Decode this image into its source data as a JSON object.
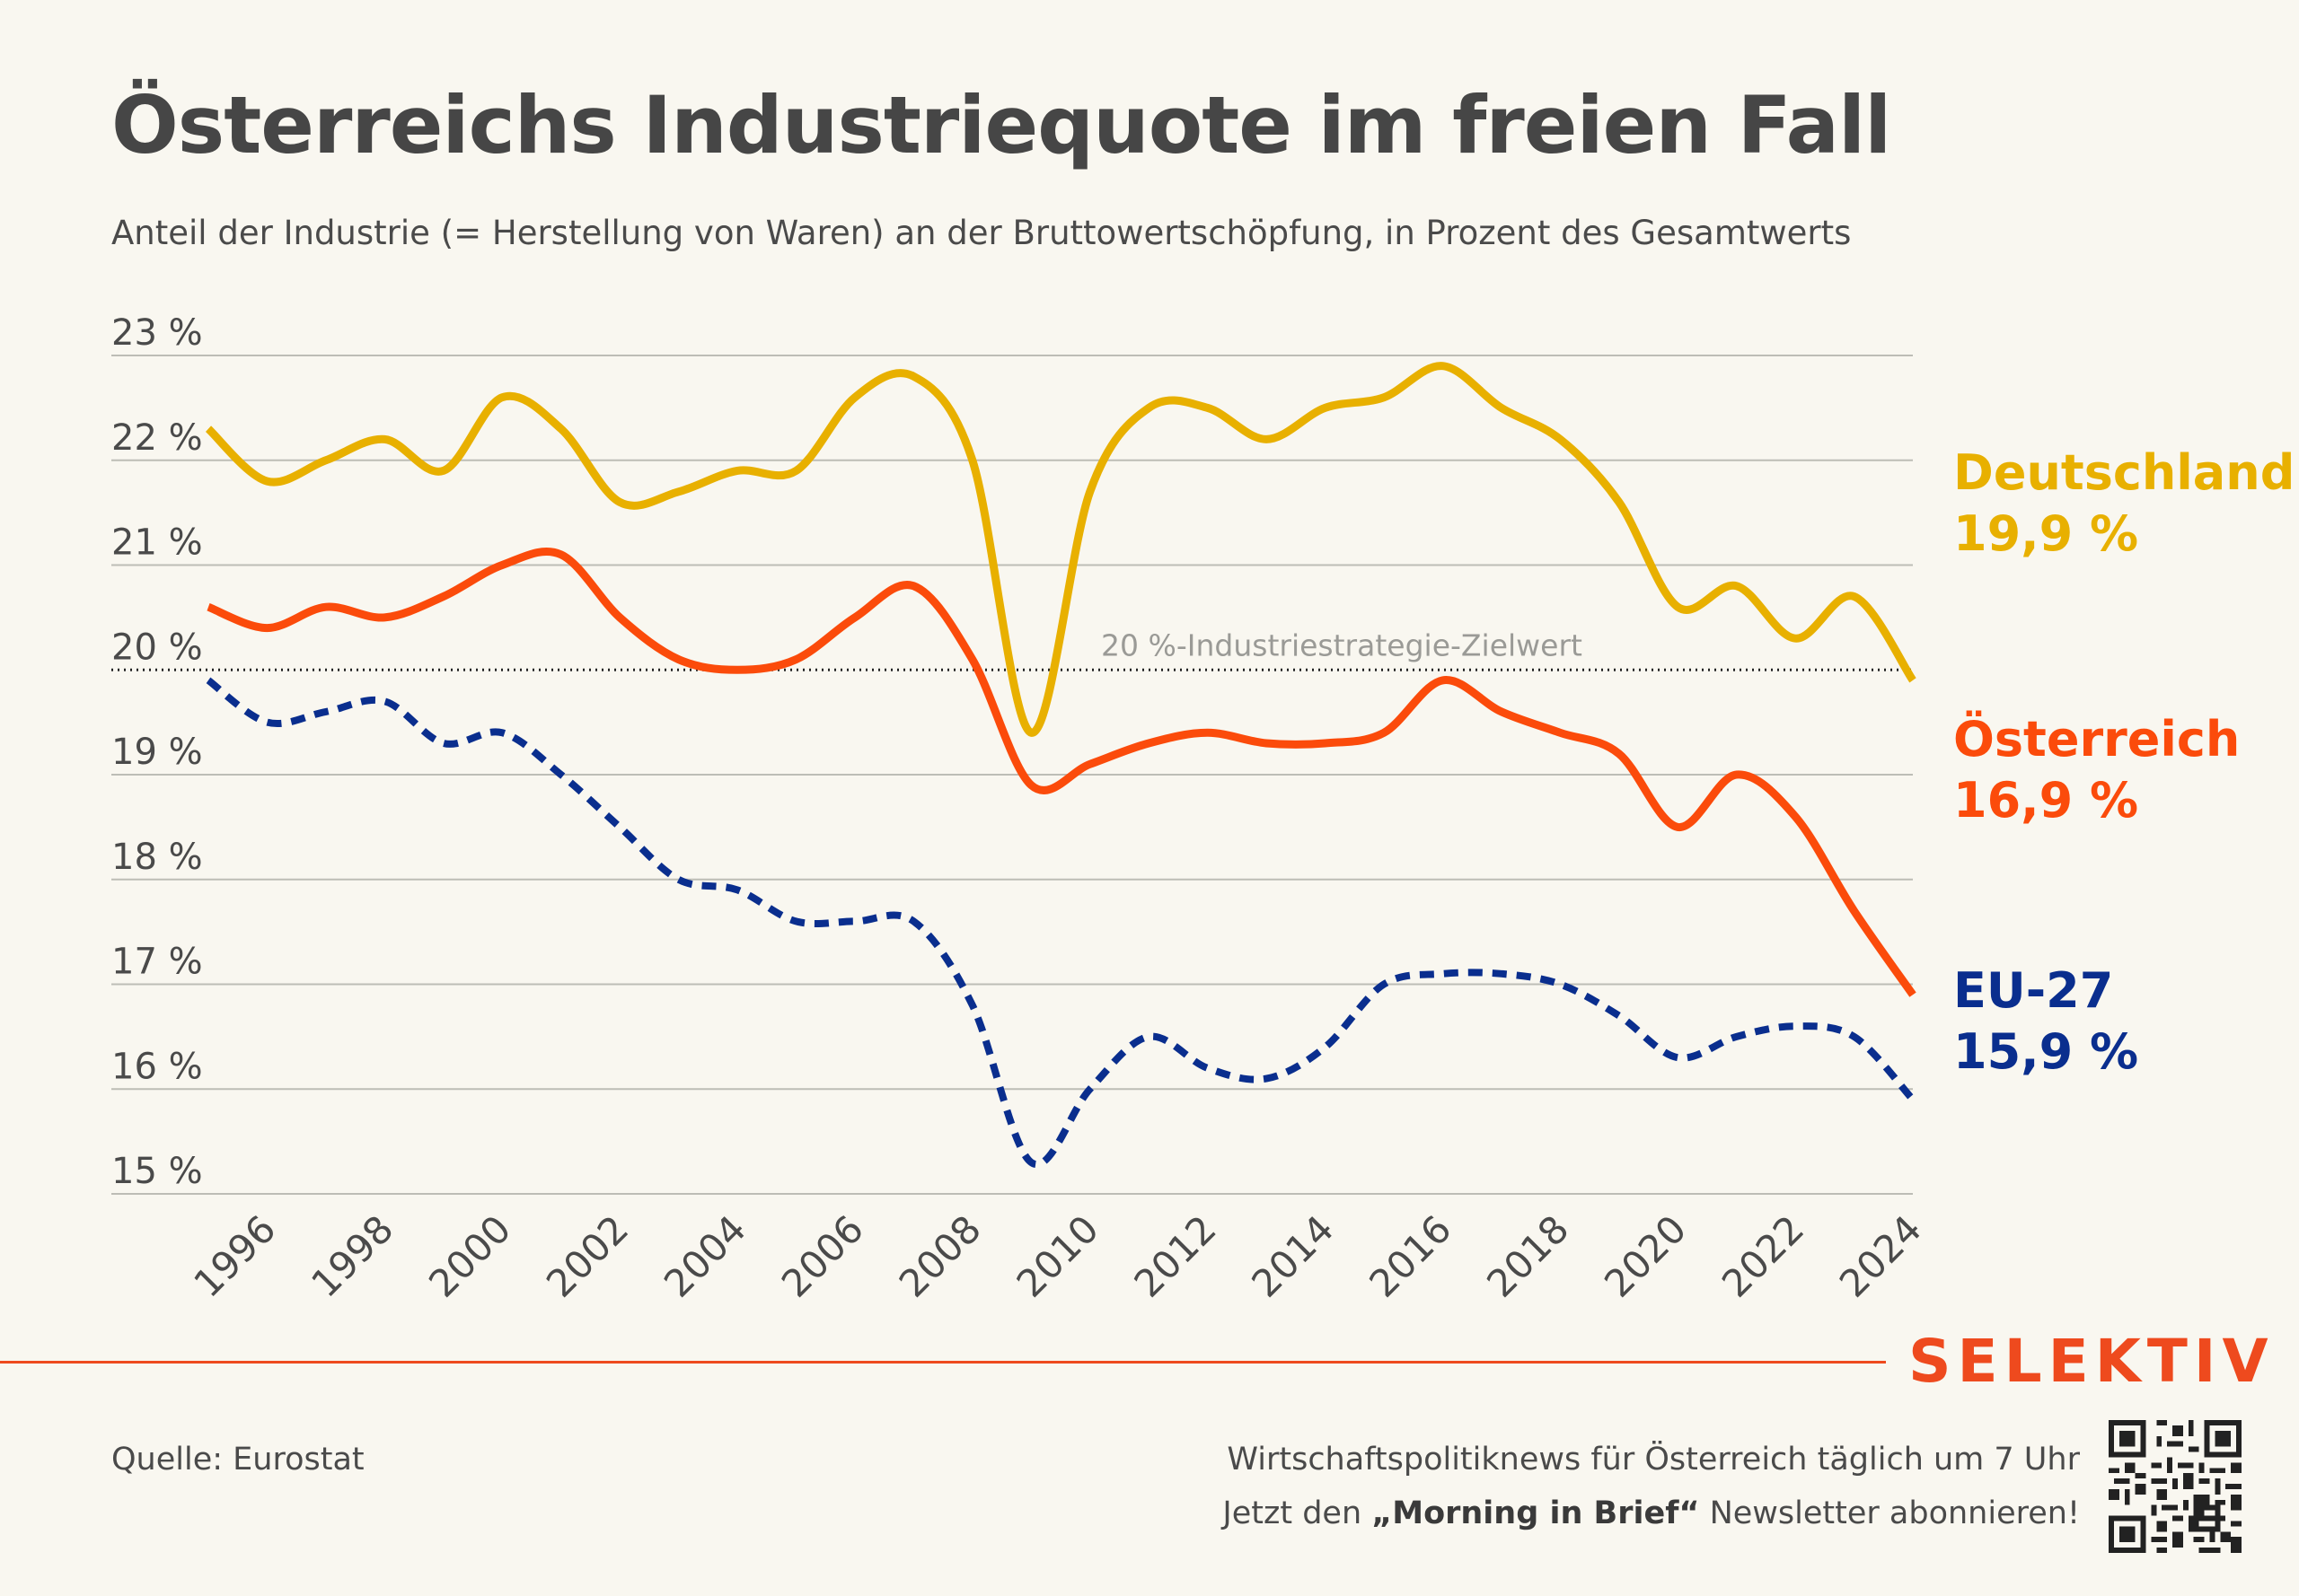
{
  "title": "Österreichs Industriequote im freien Fall",
  "subtitle": "Anteil der Industrie (= Herstellung von Waren) an der Bruttowertschöpfung, in Prozent des Gesamtwerts",
  "footer": {
    "source": "Quelle: Eurostat",
    "brand": "SELEKTIV",
    "promo_line1": "Wirtschaftspolitiknews für Österreich täglich um 7 Uhr",
    "promo_line2_prefix": "Jetzt den ",
    "promo_line2_highlight": "„Morning in Brief“",
    "promo_line2_suffix": " Newsletter abonnieren!",
    "qr_icon": "qr-code-icon"
  },
  "chart_data": {
    "type": "line",
    "title": "Österreichs Industriequote im freien Fall",
    "xlabel": "",
    "ylabel": "",
    "xlim": [
      1995,
      2024
    ],
    "ylim": [
      15,
      23
    ],
    "y_ticks": [
      15,
      16,
      17,
      18,
      19,
      20,
      21,
      22,
      23
    ],
    "y_tick_labels": [
      "15 %",
      "16 %",
      "17 %",
      "18 %",
      "19 %",
      "20 %",
      "21 %",
      "22 %",
      "23 %"
    ],
    "x_ticks": [
      1996,
      1998,
      2000,
      2002,
      2004,
      2006,
      2008,
      2010,
      2012,
      2014,
      2016,
      2018,
      2020,
      2022,
      2024
    ],
    "x_tick_labels": [
      "1996",
      "1998",
      "2000",
      "2002",
      "2004",
      "2006",
      "2008",
      "2010",
      "2012",
      "2014",
      "2016",
      "2018",
      "2020",
      "2022",
      "2024"
    ],
    "grid": true,
    "legend": "right, inline at line ends",
    "reference_line": {
      "value": 20,
      "label": "20 %-Industriestrategie-Zielwert",
      "style": "dotted"
    },
    "x": [
      1995,
      1996,
      1997,
      1998,
      1999,
      2000,
      2001,
      2002,
      2003,
      2004,
      2005,
      2006,
      2007,
      2008,
      2009,
      2010,
      2011,
      2012,
      2013,
      2014,
      2015,
      2016,
      2017,
      2018,
      2019,
      2020,
      2021,
      2022,
      2023,
      2024
    ],
    "series": [
      {
        "name": "Deutschland",
        "end_label": "19,9 %",
        "color": "#e8b000",
        "style": "solid",
        "values": [
          22.3,
          21.8,
          22.0,
          22.2,
          21.9,
          22.6,
          22.3,
          21.6,
          21.7,
          21.9,
          21.9,
          22.6,
          22.8,
          22.0,
          19.4,
          21.7,
          22.5,
          22.5,
          22.2,
          22.5,
          22.6,
          22.9,
          22.5,
          22.2,
          21.6,
          20.6,
          20.8,
          20.3,
          20.7,
          19.9
        ]
      },
      {
        "name": "Österreich",
        "end_label": "16,9 %",
        "color": "#fb4b0b",
        "style": "solid",
        "values": [
          20.6,
          20.4,
          20.6,
          20.5,
          20.7,
          21.0,
          21.1,
          20.5,
          20.1,
          20.0,
          20.1,
          20.5,
          20.8,
          20.1,
          18.9,
          19.1,
          19.3,
          19.4,
          19.3,
          19.3,
          19.4,
          19.9,
          19.6,
          19.4,
          19.2,
          18.5,
          19.0,
          18.6,
          17.7,
          16.9
        ]
      },
      {
        "name": "EU-27",
        "end_label": "15,9 %",
        "color": "#0a2e8e",
        "style": "dashed",
        "values": [
          19.9,
          19.5,
          19.6,
          19.7,
          19.3,
          19.4,
          19.0,
          18.5,
          18.0,
          17.9,
          17.6,
          17.6,
          17.6,
          16.8,
          15.3,
          16.0,
          16.5,
          16.2,
          16.1,
          16.4,
          17.0,
          17.1,
          17.1,
          17.0,
          16.7,
          16.3,
          16.5,
          16.6,
          16.5,
          15.9
        ]
      }
    ]
  }
}
